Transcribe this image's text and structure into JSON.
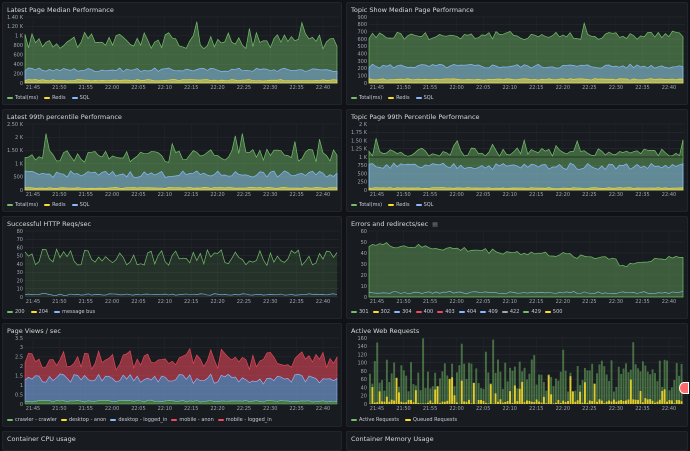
{
  "colors": {
    "green": "#73bf69",
    "yellow": "#fade2a",
    "blue": "#8ab8ff",
    "red": "#f2495c",
    "orange": "#ff9830",
    "purple": "#b877d9",
    "teal": "#5bc0be",
    "gray": "#9fa7b3",
    "lightgreen": "#a3d977",
    "darkblue": "#3274d9"
  },
  "x_ticks": [
    "21:45",
    "21:50",
    "21:55",
    "22:00",
    "22:05",
    "22:10",
    "22:15",
    "22:20",
    "22:25",
    "22:30",
    "22:35",
    "22:40"
  ],
  "panels": [
    {
      "id": "p1",
      "title": "Latest Page Median Performance",
      "y_ticks": [
        "0",
        "200",
        "400",
        "600",
        "800",
        "1 K",
        "1.20 K",
        "1.40 K"
      ],
      "ymax": 1400,
      "legend": [
        {
          "label": "Total(ms)",
          "color": "green"
        },
        {
          "label": "Redis",
          "color": "yellow"
        },
        {
          "label": "SQL",
          "color": "blue"
        }
      ]
    },
    {
      "id": "p2",
      "title": "Topic Show Median Page Performance",
      "y_ticks": [
        "0",
        "100",
        "200",
        "300",
        "400",
        "500",
        "600",
        "700",
        "800",
        "900"
      ],
      "ymax": 900,
      "legend": [
        {
          "label": "Total(ms)",
          "color": "green"
        },
        {
          "label": "Redis",
          "color": "yellow"
        },
        {
          "label": "SQL",
          "color": "blue"
        }
      ]
    },
    {
      "id": "p3",
      "title": "Latest 99th percentile Performance",
      "y_ticks": [
        "0",
        "500",
        "1 K",
        "1.50 K",
        "2 K",
        "2.50 K"
      ],
      "ymax": 2500,
      "legend": [
        {
          "label": "Total(ms)",
          "color": "green"
        },
        {
          "label": "Redis",
          "color": "yellow"
        },
        {
          "label": "SQL",
          "color": "blue"
        }
      ]
    },
    {
      "id": "p4",
      "title": "Topic Page 99th Percentile Performance",
      "y_ticks": [
        "0",
        "250",
        "500",
        "750",
        "1 K",
        "1.25 K",
        "1.50 K",
        "1.75 K",
        "2 K"
      ],
      "ymax": 2000,
      "legend": [
        {
          "label": "Total(ms)",
          "color": "green"
        },
        {
          "label": "Redis",
          "color": "yellow"
        },
        {
          "label": "SQL",
          "color": "blue"
        }
      ]
    },
    {
      "id": "p5",
      "title": "Successful HTTP Reqs/sec",
      "y_ticks": [
        "0",
        "10",
        "20",
        "30",
        "40",
        "50",
        "60",
        "70",
        "80"
      ],
      "ymax": 80,
      "legend": [
        {
          "label": "200",
          "color": "green"
        },
        {
          "label": "204",
          "color": "yellow"
        },
        {
          "label": "message bus",
          "color": "blue"
        }
      ]
    },
    {
      "id": "p6",
      "title": "Errors and redirects/sec",
      "y_ticks": [
        "0",
        "10",
        "20",
        "30",
        "40",
        "50",
        "60"
      ],
      "ymax": 60,
      "legend": [
        {
          "label": "301",
          "color": "green"
        },
        {
          "label": "302",
          "color": "yellow"
        },
        {
          "label": "304",
          "color": "blue"
        },
        {
          "label": "400",
          "color": "red"
        },
        {
          "label": "403",
          "color": "red"
        },
        {
          "label": "404",
          "color": "blue"
        },
        {
          "label": "409",
          "color": "blue"
        },
        {
          "label": "422",
          "color": "gray"
        },
        {
          "label": "429",
          "color": "green"
        },
        {
          "label": "500",
          "color": "yellow"
        }
      ]
    },
    {
      "id": "p7",
      "title": "Page Views / sec",
      "y_ticks": [
        "0",
        "0.5",
        "1",
        "1.5",
        "2",
        "2.5",
        "3",
        "3.5"
      ],
      "ymax": 3.5,
      "legend": [
        {
          "label": "crawler - crawler",
          "color": "green"
        },
        {
          "label": "desktop - anon",
          "color": "yellow"
        },
        {
          "label": "desktop - logged_in",
          "color": "blue"
        },
        {
          "label": "mobile - anon",
          "color": "red"
        },
        {
          "label": "mobile - logged_in",
          "color": "red"
        }
      ]
    },
    {
      "id": "p8",
      "title": "Active Web Requests",
      "y_ticks": [
        "0",
        "20",
        "40",
        "60",
        "80",
        "100",
        "120",
        "140",
        "160"
      ],
      "ymax": 160,
      "legend": [
        {
          "label": "Active Requests",
          "color": "green"
        },
        {
          "label": "Queued Requests",
          "color": "yellow"
        }
      ]
    },
    {
      "id": "p9",
      "title": "Container CPU usage"
    },
    {
      "id": "p10",
      "title": "Container Memory Usage"
    }
  ]
}
